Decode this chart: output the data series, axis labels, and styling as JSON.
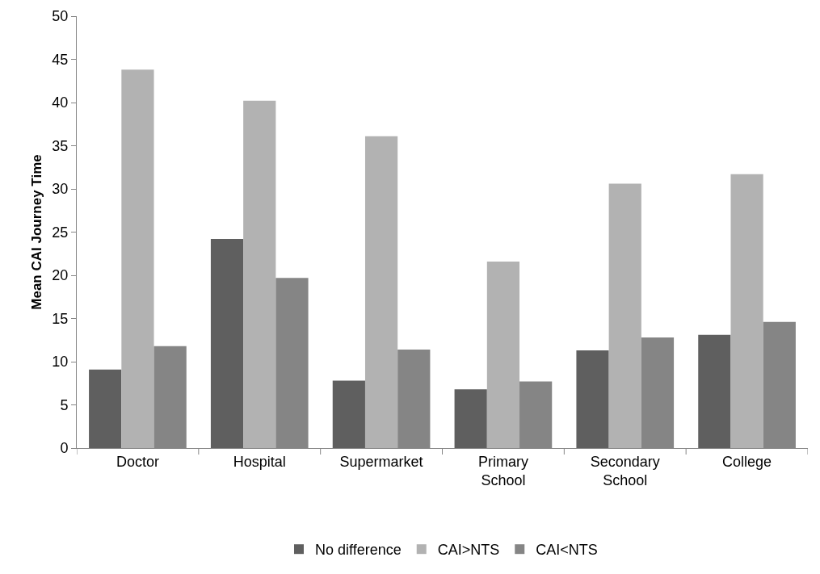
{
  "chart_data": {
    "type": "bar",
    "ylabel": "Mean CAI Journey Time",
    "categories": [
      "Doctor",
      "Hospital",
      "Supermarket",
      "Primary School",
      "Secondary School",
      "College"
    ],
    "series": [
      {
        "name": "No difference",
        "color": "#5f5f5f",
        "values": [
          9.1,
          24.2,
          7.8,
          6.8,
          11.3,
          13.1
        ]
      },
      {
        "name": "CAI>NTS",
        "color": "#b2b2b2",
        "values": [
          43.8,
          40.2,
          36.1,
          21.6,
          30.6,
          31.7
        ]
      },
      {
        "name": "CAI<NTS",
        "color": "#858585",
        "values": [
          11.8,
          19.7,
          11.4,
          7.7,
          12.8,
          14.6
        ]
      }
    ],
    "ylim": [
      0,
      50
    ],
    "yticks": [
      0,
      5,
      10,
      15,
      20,
      25,
      30,
      35,
      40,
      45,
      50
    ],
    "grid": false,
    "legend": "bottom"
  }
}
